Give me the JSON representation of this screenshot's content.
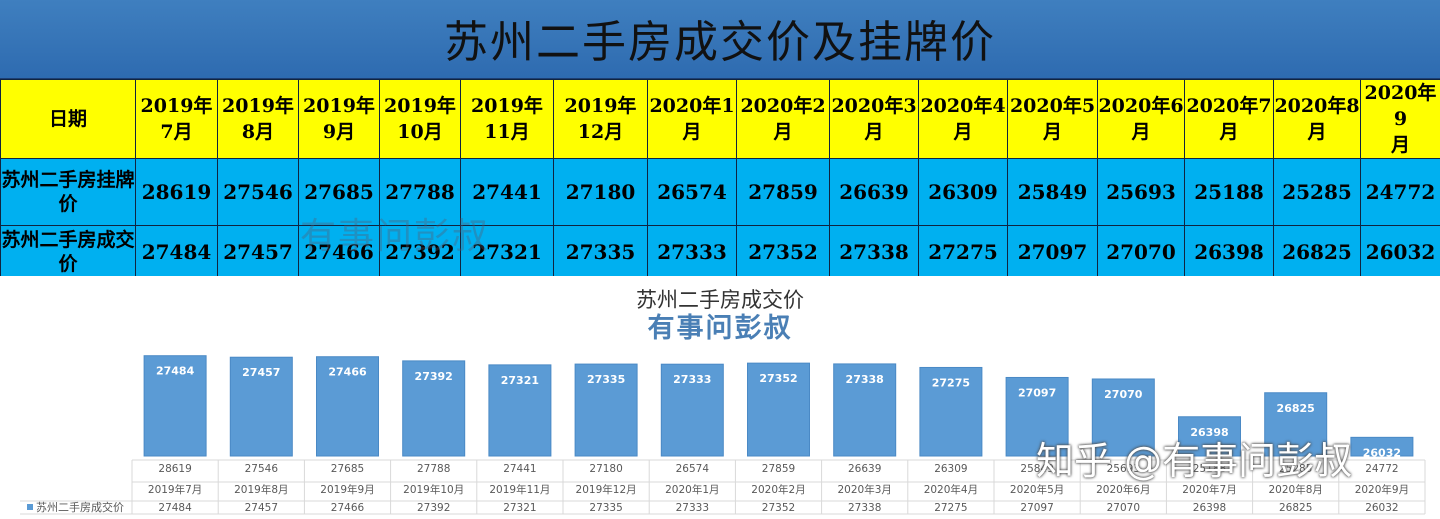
{
  "title": "苏州二手房成交价及挂牌价",
  "table": {
    "header_label": "日期",
    "row1_label": "苏州二手房挂牌价",
    "row2_label": "苏州二手房成交价",
    "columns": [
      "2019年7月",
      "2019年8月",
      "2019年9月",
      "2019年10月",
      "2019年11月",
      "2019年12月",
      "2020年1月",
      "2020年2月",
      "2020年3月",
      "2020年4月",
      "2020年5月",
      "2020年6月",
      "2020年7月",
      "2020年8月",
      "2020年9月"
    ],
    "listing": [
      28619,
      27546,
      27685,
      27788,
      27441,
      27180,
      26574,
      27859,
      26639,
      26309,
      25849,
      25693,
      25188,
      25285,
      24772
    ],
    "deal": [
      27484,
      27457,
      27466,
      27392,
      27321,
      27335,
      27333,
      27352,
      27338,
      27275,
      27097,
      27070,
      26398,
      26825,
      26032
    ]
  },
  "watermarks": [
    "有事问彭叔",
    "有事问彭叔",
    "知乎 @有事问彭叔"
  ],
  "chart_data": {
    "type": "bar",
    "title": "苏州二手房成交价",
    "categories": [
      "2019年7月",
      "2019年8月",
      "2019年9月",
      "2019年10月",
      "2019年11月",
      "2019年12月",
      "2020年1月",
      "2020年2月",
      "2020年3月",
      "2020年4月",
      "2020年5月",
      "2020年6月",
      "2020年7月",
      "2020年8月",
      "2020年9月"
    ],
    "category_upper_labels": [
      28619,
      27546,
      27685,
      27788,
      27441,
      27180,
      26574,
      27859,
      26639,
      26309,
      25849,
      25693,
      25188,
      25285,
      24772
    ],
    "series": [
      {
        "name": "苏州二手房成交价",
        "values": [
          27484,
          27457,
          27466,
          27392,
          27321,
          27335,
          27333,
          27352,
          27338,
          27275,
          27097,
          27070,
          26398,
          26825,
          26032
        ]
      }
    ],
    "ylim": [
      25700,
      27550
    ],
    "data_table": true,
    "bar_color": "#5b9bd5",
    "grid": false
  }
}
